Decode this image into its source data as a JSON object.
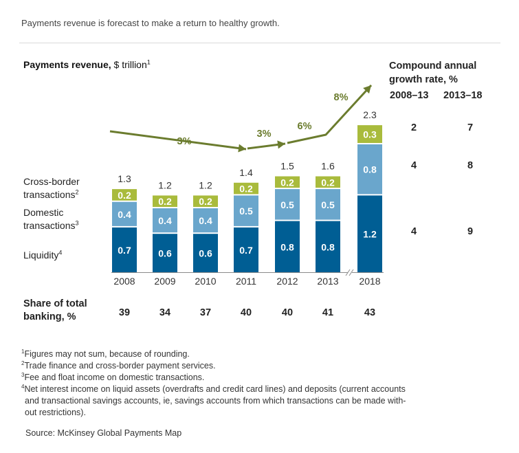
{
  "subtitle": "Payments revenue is forecast to make a return to healthy growth.",
  "chart_title": {
    "bold": "Payments revenue,",
    "rest": " $ trillion",
    "sup": "1"
  },
  "legend": {
    "cross_border_1": "Cross-border",
    "cross_border_2": "transactions",
    "cross_border_sup": "2",
    "domestic_1": "Domestic",
    "domestic_2": "transactions",
    "domestic_sup": "3",
    "liquidity": "Liquidity",
    "liquidity_sup": "4"
  },
  "colors": {
    "liquidity": "#005e94",
    "domestic": "#6aa6cc",
    "cross_border": "#a9bb3c",
    "arrow": "#6b7c2e"
  },
  "chart_data": {
    "type": "bar",
    "stacked": true,
    "title": "Payments revenue, $ trillion",
    "categories": [
      "2008",
      "2009",
      "2010",
      "2011",
      "2012",
      "2013",
      "2018"
    ],
    "series": [
      {
        "name": "Liquidity",
        "values": [
          0.7,
          0.6,
          0.6,
          0.7,
          0.8,
          0.8,
          1.2
        ]
      },
      {
        "name": "Domestic transactions",
        "values": [
          0.4,
          0.4,
          0.4,
          0.5,
          0.5,
          0.5,
          0.8
        ]
      },
      {
        "name": "Cross-border transactions",
        "values": [
          0.2,
          0.2,
          0.2,
          0.2,
          0.2,
          0.2,
          0.3
        ]
      }
    ],
    "totals": [
      "1.3",
      "1.2",
      "1.2",
      "1.4",
      "1.5",
      "1.6",
      "2.3"
    ],
    "annotations": [
      "3%",
      "3%",
      "6%",
      "8%"
    ],
    "ylim": [
      0,
      2.3
    ],
    "axis_break_between": [
      "2013",
      "2018"
    ]
  },
  "cagr": {
    "title_1": "Compound annual",
    "title_2": "growth rate, %",
    "col1": "2008–13",
    "col2": "2013–18",
    "rows": [
      {
        "a": "2",
        "b": "7"
      },
      {
        "a": "4",
        "b": "8"
      },
      {
        "a": "4",
        "b": "9"
      }
    ]
  },
  "share": {
    "label_1": "Share of total",
    "label_2": "banking, %",
    "values": [
      "39",
      "34",
      "37",
      "40",
      "40",
      "41",
      "43"
    ]
  },
  "footnotes": [
    {
      "n": "1",
      "text": "Figures may not sum, because of rounding."
    },
    {
      "n": "2",
      "text": "Trade finance and cross-border payment services."
    },
    {
      "n": "3",
      "text": "Fee and float income on domestic transactions."
    },
    {
      "n": "4",
      "text": "Net interest income on liquid assets (overdrafts and credit card lines) and deposits (current accounts"
    },
    {
      "n": "",
      "text": "and transactional savings accounts, ie, savings accounts from which transactions can be made with-"
    },
    {
      "n": "",
      "text": "out restrictions)."
    }
  ],
  "source": "Source: McKinsey Global Payments Map"
}
